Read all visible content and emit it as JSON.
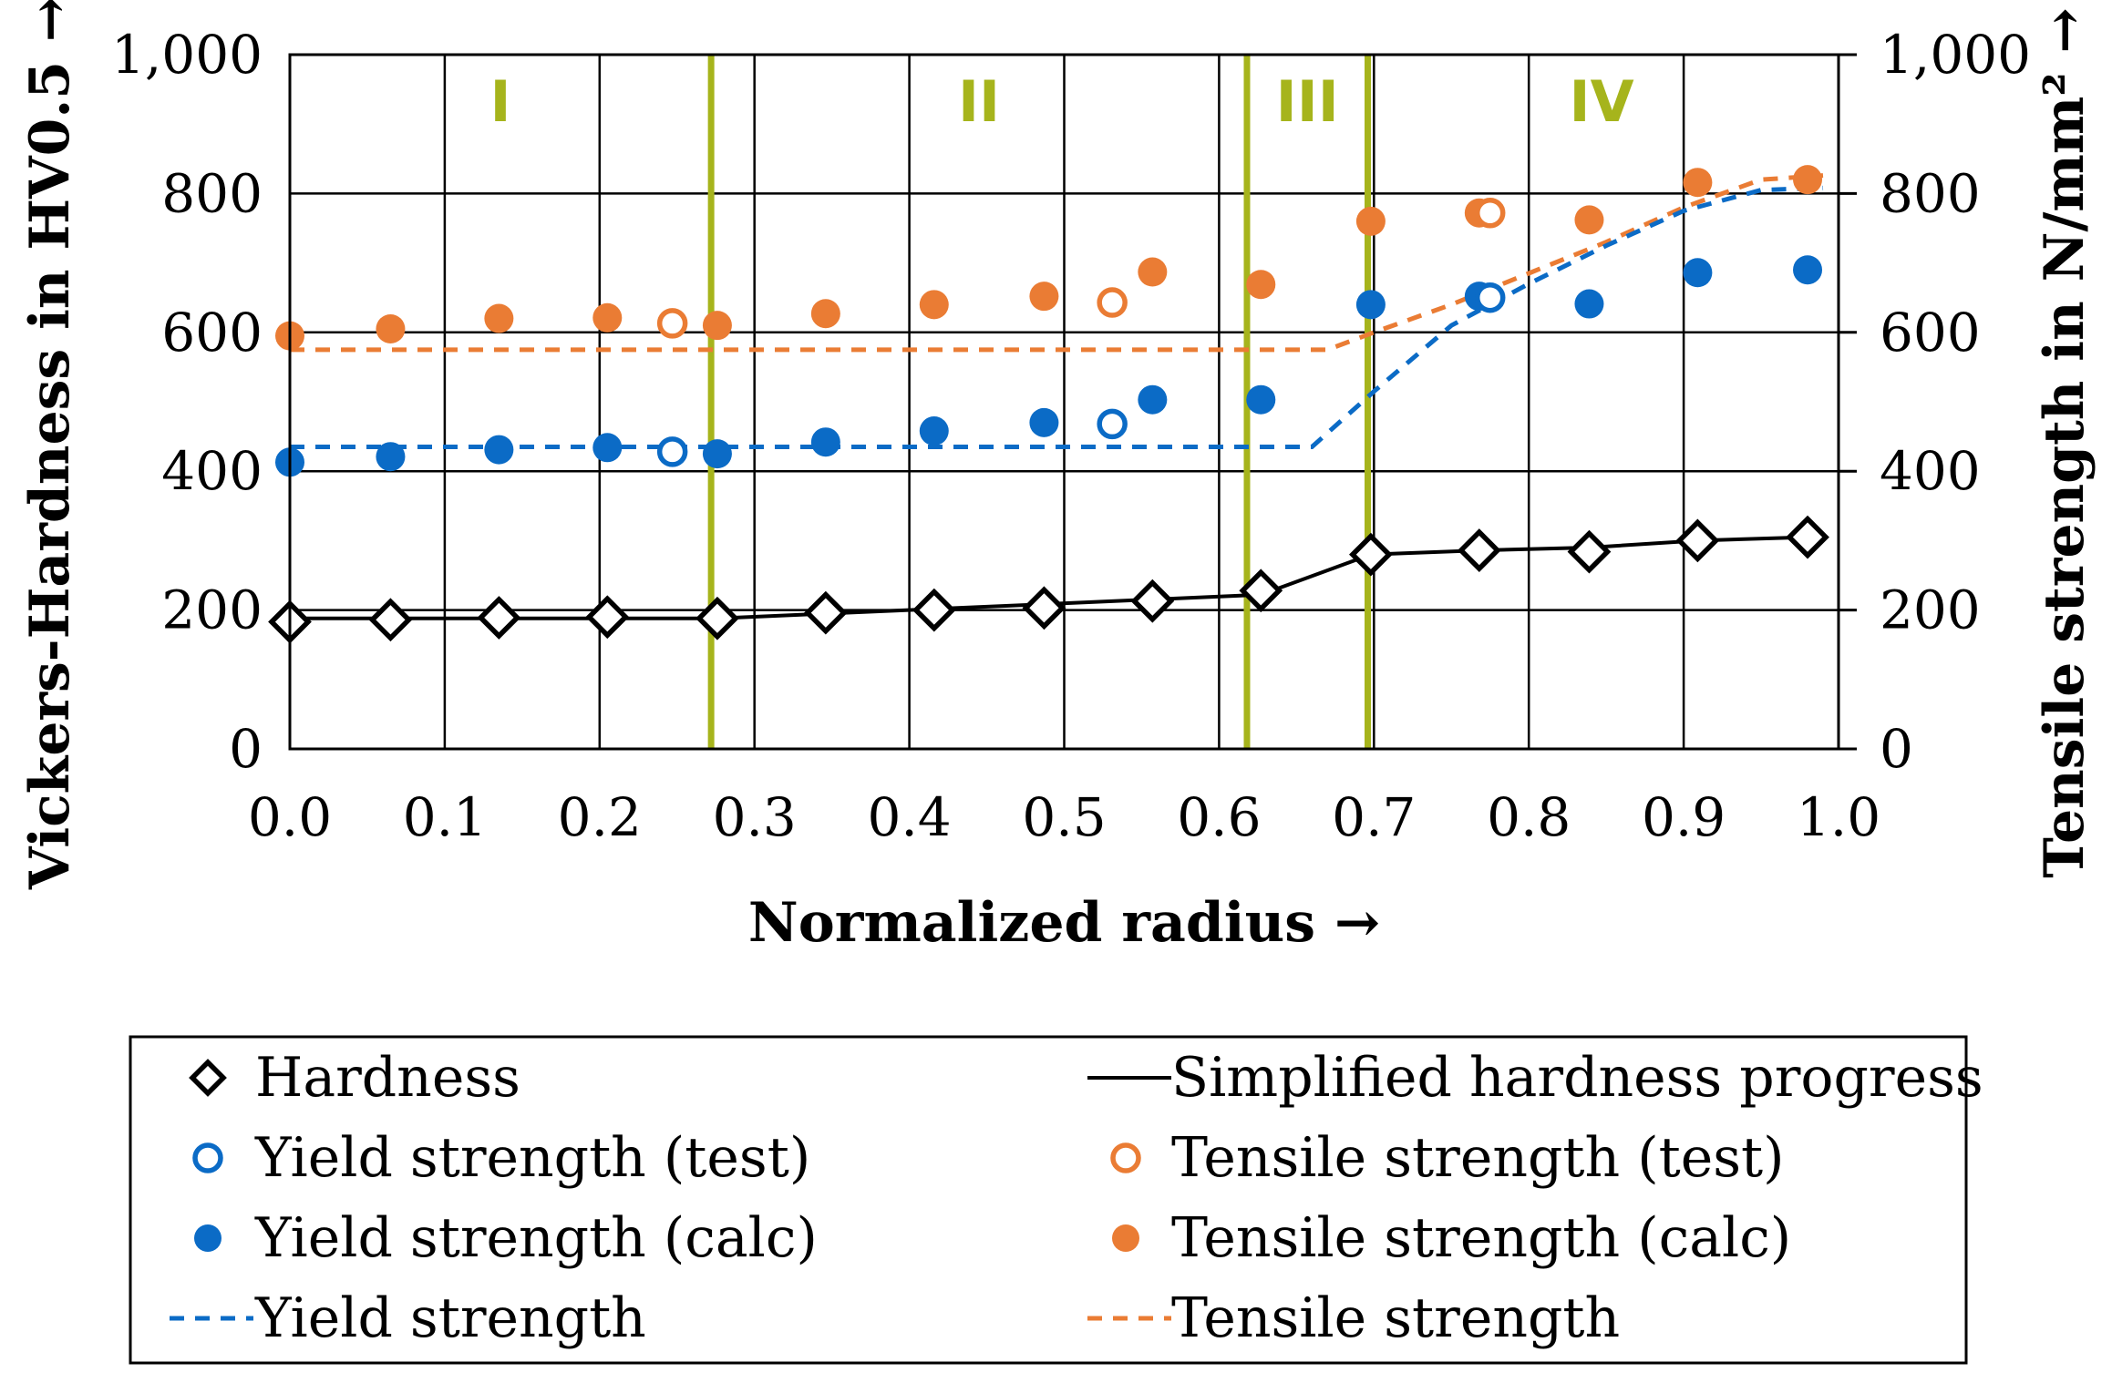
{
  "chart_data": {
    "type": "scatter",
    "xlabel": "Normalized radius →",
    "ylabel": "Vickers-Hardness in HV0.5 →",
    "y2label": "Tensile strength in N/mm² →",
    "xlim": [
      0,
      1
    ],
    "ylim": [
      0,
      1000
    ],
    "y2lim": [
      0,
      1000
    ],
    "x_ticks": [
      "0.0",
      "0.1",
      "0.2",
      "0.3",
      "0.4",
      "0.5",
      "0.6",
      "0.7",
      "0.8",
      "0.9",
      "1.0"
    ],
    "y_ticks": [
      "0",
      "200",
      "400",
      "600",
      "800",
      "1,000"
    ],
    "y2_ticks": [
      "0",
      "200",
      "400",
      "600",
      "800",
      "1,000"
    ],
    "grid": true,
    "region_color": "#a6b41c",
    "region_boundaries": [
      0.272,
      0.618,
      0.696
    ],
    "regions": [
      {
        "label": "I",
        "x": 0.136
      },
      {
        "label": "II",
        "x": 0.445
      },
      {
        "label": "III",
        "x": 0.657
      },
      {
        "label": "IV",
        "x": 0.847
      }
    ],
    "series": [
      {
        "name": "Hardness",
        "marker": "diamond-open",
        "color": "#000000",
        "x": [
          0.0,
          0.065,
          0.135,
          0.205,
          0.276,
          0.346,
          0.416,
          0.487,
          0.557,
          0.627,
          0.698,
          0.768,
          0.839,
          0.909,
          0.98
        ],
        "y": [
          183,
          186,
          189,
          190,
          188,
          196,
          200,
          203,
          213,
          228,
          280,
          286,
          284,
          300,
          305
        ]
      },
      {
        "name": "Simplified hardness progress",
        "marker": "line-solid",
        "color": "#000000",
        "x": [
          0.0,
          0.276,
          0.627,
          0.698,
          0.768,
          0.839,
          0.909,
          0.98
        ],
        "y": [
          188,
          188,
          222,
          280,
          286,
          290,
          300,
          305
        ]
      },
      {
        "name": "Yield strength (test)",
        "marker": "circle-open",
        "color": "#0b6bc6",
        "x": [
          0.247,
          0.531,
          0.775
        ],
        "y": [
          428,
          468,
          650
        ]
      },
      {
        "name": "Tensile strength (test)",
        "marker": "circle-open",
        "color": "#ea7c34",
        "x": [
          0.247,
          0.531,
          0.775
        ],
        "y": [
          613,
          643,
          772
        ]
      },
      {
        "name": "Yield strength (calc)",
        "marker": "circle-filled",
        "color": "#0b6bc6",
        "x": [
          0.0,
          0.065,
          0.135,
          0.205,
          0.276,
          0.346,
          0.416,
          0.487,
          0.557,
          0.627,
          0.698,
          0.768,
          0.839,
          0.909,
          0.98
        ],
        "y": [
          413,
          421,
          431,
          434,
          425,
          442,
          458,
          470,
          503,
          503,
          640,
          652,
          641,
          686,
          690
        ]
      },
      {
        "name": "Tensile strength (calc)",
        "marker": "circle-filled",
        "color": "#ea7c34",
        "x": [
          0.0,
          0.065,
          0.135,
          0.205,
          0.276,
          0.346,
          0.416,
          0.487,
          0.557,
          0.627,
          0.698,
          0.768,
          0.839,
          0.909,
          0.98
        ],
        "y": [
          595,
          605,
          620,
          621,
          610,
          627,
          640,
          652,
          687,
          669,
          760,
          772,
          762,
          816,
          820
        ]
      },
      {
        "name": "Yield strength",
        "marker": "line-dashed",
        "color": "#0b6bc6",
        "x": [
          0.0,
          0.05,
          0.1,
          0.2,
          0.3,
          0.4,
          0.5,
          0.6,
          0.66,
          0.7,
          0.75,
          0.8,
          0.85,
          0.9,
          0.95,
          0.99
        ],
        "y": [
          435,
          435,
          435,
          435,
          435,
          435,
          435,
          435,
          435,
          515,
          610,
          670,
          725,
          775,
          805,
          808
        ]
      },
      {
        "name": "Tensile strength",
        "marker": "line-dashed",
        "color": "#ea7c34",
        "x": [
          0.0,
          0.05,
          0.1,
          0.2,
          0.3,
          0.4,
          0.5,
          0.6,
          0.67,
          0.7,
          0.75,
          0.8,
          0.85,
          0.9,
          0.95,
          0.99
        ],
        "y": [
          575,
          575,
          575,
          575,
          575,
          575,
          575,
          575,
          575,
          600,
          640,
          685,
          730,
          780,
          820,
          826
        ]
      }
    ],
    "legend_position": "bottom"
  }
}
